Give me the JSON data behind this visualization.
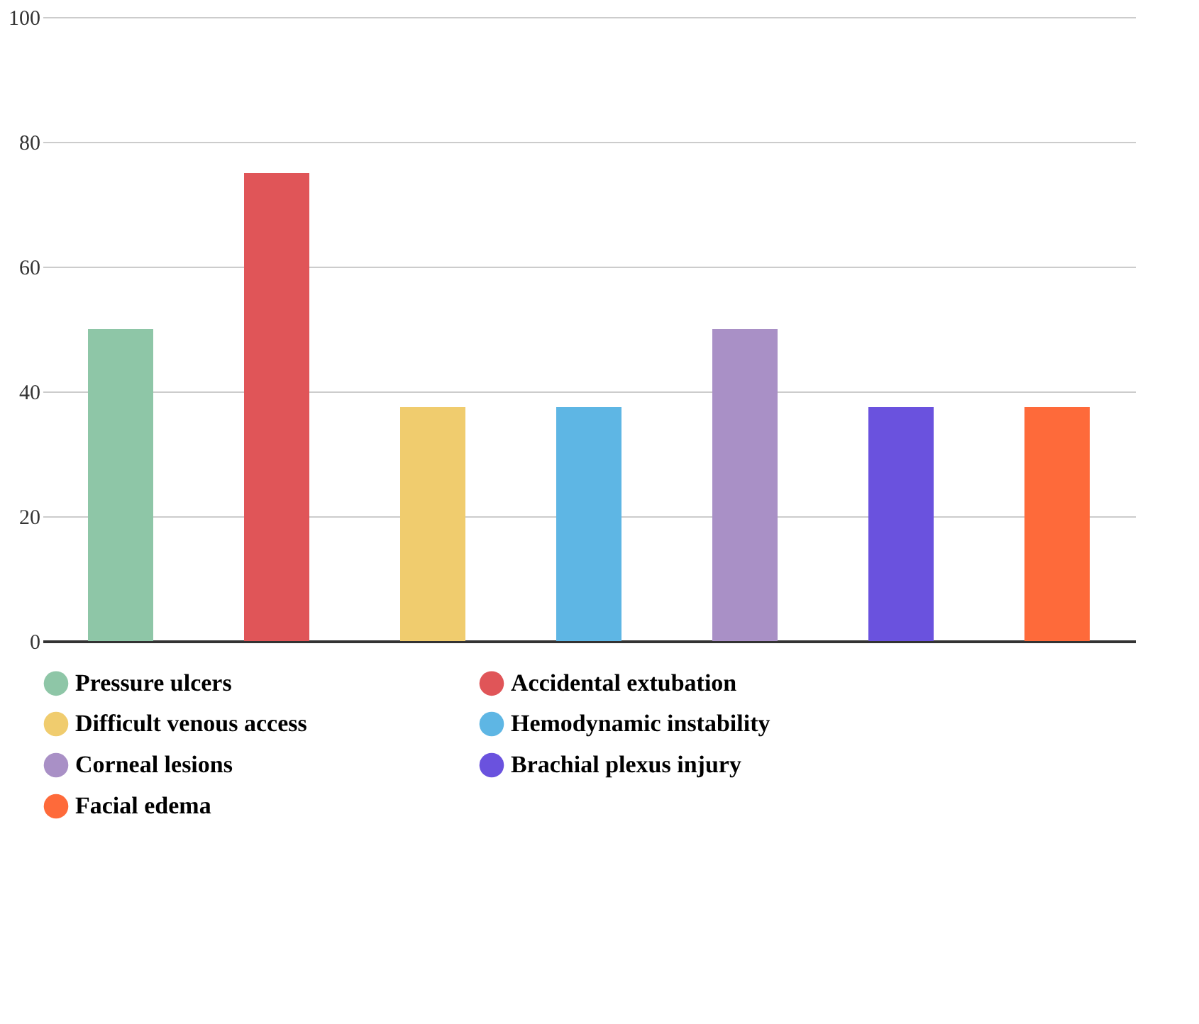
{
  "chart_data": {
    "type": "bar",
    "categories": [
      null,
      null,
      null,
      null,
      null,
      null,
      null
    ],
    "series": [
      {
        "name": "Pressure ulcers",
        "color": "#8ec6a7",
        "values": [
          50,
          null,
          null,
          null,
          null,
          null,
          null
        ]
      },
      {
        "name": "Accidental extubation",
        "color": "#e05558",
        "values": [
          null,
          75,
          null,
          null,
          null,
          null,
          null
        ]
      },
      {
        "name": "Difficult venous access",
        "color": "#f0cc6e",
        "values": [
          null,
          null,
          37.5,
          null,
          null,
          null,
          null
        ]
      },
      {
        "name": "Hemodynamic instability",
        "color": "#5eb6e4",
        "values": [
          null,
          null,
          null,
          37.5,
          null,
          null,
          null
        ]
      },
      {
        "name": "Corneal lesions",
        "color": "#a990c6",
        "values": [
          null,
          null,
          null,
          null,
          50,
          null,
          null
        ]
      },
      {
        "name": "Brachial plexus injury",
        "color": "#6a52de",
        "values": [
          null,
          null,
          null,
          null,
          null,
          37.5,
          null
        ]
      },
      {
        "name": "Facial edema",
        "color": "#fe6a3a",
        "values": [
          null,
          null,
          null,
          null,
          null,
          null,
          37.5
        ]
      }
    ],
    "ylim": [
      0,
      100
    ],
    "yticks": [
      0,
      20,
      40,
      60,
      80,
      100
    ],
    "grid": "y",
    "legend": "bottom",
    "tick_labels": "y"
  }
}
